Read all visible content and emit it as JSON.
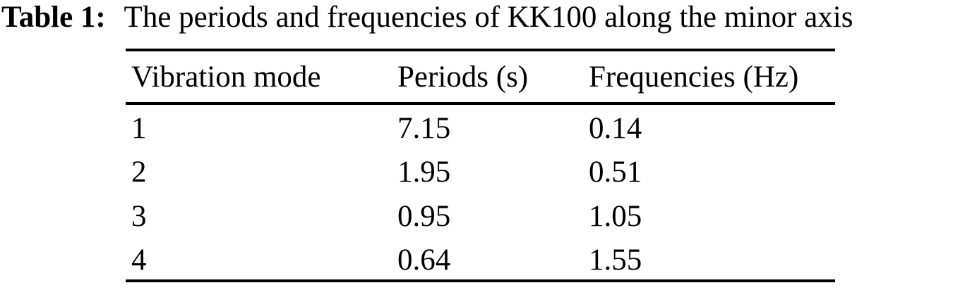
{
  "page": {
    "background_color": "#ffffff",
    "text_color": "#000000"
  },
  "caption": {
    "label": "Table 1:",
    "text": "The periods and frequencies of KK100 along the minor axis"
  },
  "table": {
    "columns": [
      "Vibration mode",
      "Periods (s)",
      "Frequencies (Hz)"
    ],
    "rows": [
      [
        "1",
        "7.15",
        "0.14"
      ],
      [
        "2",
        "1.95",
        "0.51"
      ],
      [
        "3",
        "0.95",
        "1.05"
      ],
      [
        "4",
        "0.64",
        "1.55"
      ]
    ]
  },
  "chart_data": {
    "type": "table",
    "title": "Table 1: The periods and frequencies of KK100 along the minor axis",
    "columns": [
      "Vibration mode",
      "Periods (s)",
      "Frequencies (Hz)"
    ],
    "vibration_modes": [
      1,
      2,
      3,
      4
    ],
    "periods_s": [
      7.15,
      1.95,
      0.95,
      0.64
    ],
    "frequencies_hz": [
      0.14,
      0.51,
      1.05,
      1.55
    ]
  }
}
